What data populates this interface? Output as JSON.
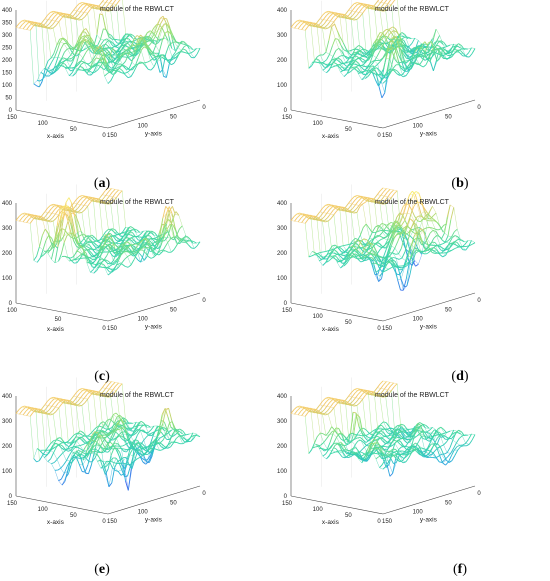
{
  "figure": {
    "panels": [
      {
        "id": "a",
        "caption_letter": "a",
        "title": "module of the RBWLCT",
        "z_ticks": [
          "0",
          "50",
          "100",
          "150",
          "200",
          "250",
          "300",
          "350",
          "400"
        ],
        "x_ticks": [
          "150",
          "100",
          "50",
          "0"
        ],
        "y_ticks": [
          "0",
          "50",
          "100",
          "150"
        ],
        "xlabel": "x-axis",
        "ylabel": "y-axis",
        "seed": 11
      },
      {
        "id": "b",
        "caption_letter": "b",
        "title": "module of the RBWLCT",
        "z_ticks": [
          "0",
          "100",
          "200",
          "300",
          "400"
        ],
        "x_ticks": [
          "150",
          "100",
          "50",
          "0"
        ],
        "y_ticks": [
          "0",
          "50",
          "100",
          "150"
        ],
        "xlabel": "x-axis",
        "ylabel": "y-axis",
        "seed": 23
      },
      {
        "id": "c",
        "caption_letter": "c",
        "title": "module of the RBWLCT",
        "z_ticks": [
          "0",
          "100",
          "200",
          "300",
          "400"
        ],
        "x_ticks": [
          "100",
          "50",
          "0"
        ],
        "y_ticks": [
          "0",
          "50",
          "100",
          "150"
        ],
        "xlabel": "x-axis",
        "ylabel": "y-axis",
        "seed": 37
      },
      {
        "id": "d",
        "caption_letter": "d",
        "title": "module of the RBWLCT",
        "z_ticks": [
          "0",
          "100",
          "200",
          "300",
          "400"
        ],
        "x_ticks": [
          "150",
          "100",
          "50",
          "0"
        ],
        "y_ticks": [
          "0",
          "50",
          "100",
          "150"
        ],
        "xlabel": "x-axis",
        "ylabel": "y-axis",
        "seed": 41
      },
      {
        "id": "e",
        "caption_letter": "e",
        "title": "module of the RBWLCT",
        "z_ticks": [
          "0",
          "100",
          "200",
          "300",
          "400"
        ],
        "x_ticks": [
          "150",
          "100",
          "50",
          "0"
        ],
        "y_ticks": [
          "0",
          "50",
          "100",
          "150"
        ],
        "xlabel": "x-axis",
        "ylabel": "y-axis",
        "seed": 53
      },
      {
        "id": "f",
        "caption_letter": "f",
        "title": "module of the RBWLCT",
        "z_ticks": [
          "0",
          "100",
          "200",
          "300",
          "400"
        ],
        "x_ticks": [
          "150",
          "100",
          "50",
          "0"
        ],
        "y_ticks": [
          "0",
          "50",
          "100",
          "150"
        ],
        "xlabel": "x-axis",
        "ylabel": "y-axis",
        "seed": 67
      }
    ],
    "colormap": [
      "#3b1fd6",
      "#3f6cf0",
      "#29b4d8",
      "#3cd7a8",
      "#9ae072",
      "#f2c66a",
      "#f9f176"
    ]
  },
  "chart_data": [
    {
      "type": "surface",
      "title": "module of the RBWLCT",
      "xlabel": "x-axis",
      "ylabel": "y-axis",
      "xlim": [
        0,
        150
      ],
      "ylim": [
        0,
        150
      ],
      "zlim": [
        0,
        400
      ]
    },
    {
      "type": "surface",
      "title": "module of the RBWLCT",
      "xlabel": "x-axis",
      "ylabel": "y-axis",
      "xlim": [
        0,
        150
      ],
      "ylim": [
        0,
        150
      ],
      "zlim": [
        0,
        400
      ]
    },
    {
      "type": "surface",
      "title": "module of the RBWLCT",
      "xlabel": "x-axis",
      "ylabel": "y-axis",
      "xlim": [
        0,
        150
      ],
      "ylim": [
        0,
        150
      ],
      "zlim": [
        0,
        400
      ]
    },
    {
      "type": "surface",
      "title": "module of the RBWLCT",
      "xlabel": "x-axis",
      "ylabel": "y-axis",
      "xlim": [
        0,
        150
      ],
      "ylim": [
        0,
        150
      ],
      "zlim": [
        0,
        400
      ]
    },
    {
      "type": "surface",
      "title": "module of the RBWLCT",
      "xlabel": "x-axis",
      "ylabel": "y-axis",
      "xlim": [
        0,
        150
      ],
      "ylim": [
        0,
        150
      ],
      "zlim": [
        0,
        400
      ]
    },
    {
      "type": "surface",
      "title": "module of the RBWLCT",
      "xlabel": "x-axis",
      "ylabel": "y-axis",
      "xlim": [
        0,
        150
      ],
      "ylim": [
        0,
        150
      ],
      "zlim": [
        0,
        400
      ]
    }
  ]
}
